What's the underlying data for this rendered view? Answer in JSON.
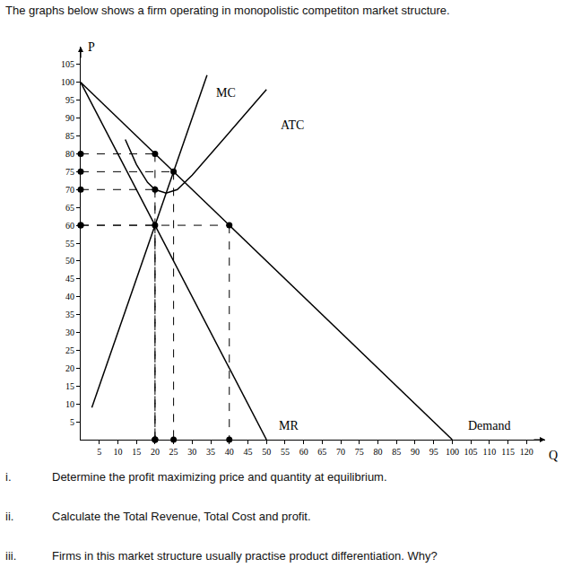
{
  "heading": "The graphs below shows a firm operating in monopolistic competiton market structure.",
  "questions": [
    {
      "number": "i.",
      "text": "Determine the profit maximizing price and quantity at equilibrium."
    },
    {
      "number": "ii.",
      "text": "Calculate the Total Revenue, Total Cost and profit."
    },
    {
      "number": "iii.",
      "text": "Firms in this market structure usually practise product differentiation. Why?"
    }
  ],
  "chart_data": {
    "type": "line",
    "x_label": "Q",
    "y_label": "P",
    "xlim": [
      0,
      125
    ],
    "xticks": [
      5,
      10,
      15,
      20,
      25,
      30,
      35,
      40,
      45,
      50,
      55,
      60,
      65,
      70,
      75,
      80,
      85,
      90,
      95,
      100,
      105,
      110,
      115,
      120
    ],
    "ylim": [
      0,
      110
    ],
    "yticks": [
      5,
      10,
      15,
      20,
      25,
      30,
      35,
      40,
      45,
      50,
      55,
      60,
      65,
      70,
      75,
      80,
      85,
      90,
      95,
      100,
      105
    ],
    "grid": false,
    "series": [
      {
        "name": "Demand",
        "color": "#000000",
        "line_style": "solid",
        "x": [
          0,
          100
        ],
        "values": [
          100,
          0
        ],
        "label_at": {
          "x": 110,
          "y": 4
        }
      },
      {
        "name": "MR",
        "color": "#000000",
        "line_style": "solid",
        "x": [
          0,
          50
        ],
        "values": [
          100,
          0
        ],
        "label_at": {
          "x": 56,
          "y": 4
        }
      },
      {
        "name": "MC",
        "color": "#000000",
        "line_style": "solid",
        "x": [
          3,
          20,
          25,
          34
        ],
        "values": [
          9,
          60,
          75,
          102
        ],
        "label_at": {
          "x": 39,
          "y": 97
        }
      },
      {
        "name": "ATC",
        "color": "#000000",
        "line_style": "solid",
        "x": [
          12,
          15,
          18,
          20,
          23,
          26,
          30,
          35,
          40,
          45,
          50
        ],
        "values": [
          84,
          77,
          72,
          70,
          69,
          70,
          74,
          80,
          86,
          92,
          98
        ],
        "label_at": {
          "x": 57,
          "y": 88
        }
      }
    ],
    "guides": {
      "color": "#000000",
      "line_style": "dash",
      "marker": "circle",
      "points": [
        {
          "x": 20,
          "y": 80
        },
        {
          "x": 25,
          "y": 75
        },
        {
          "x": 20,
          "y": 70
        },
        {
          "x": 20,
          "y": 60
        },
        {
          "x": 40,
          "y": 60
        }
      ]
    }
  }
}
